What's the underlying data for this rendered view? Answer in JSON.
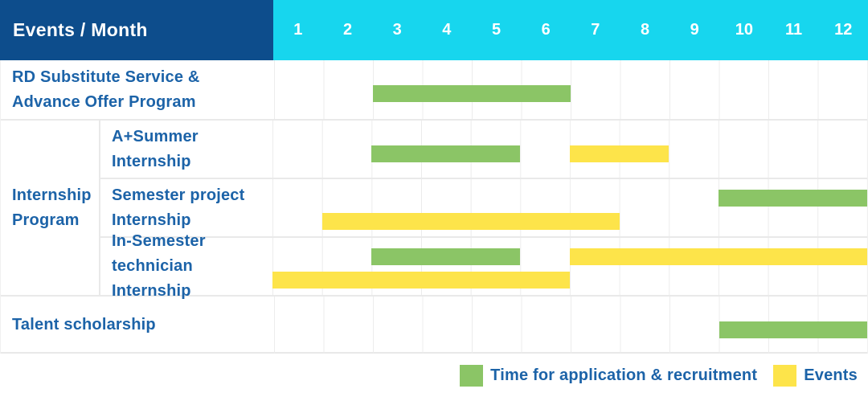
{
  "header": {
    "label": "Events / Month",
    "months": [
      "1",
      "2",
      "3",
      "4",
      "5",
      "6",
      "7",
      "8",
      "9",
      "10",
      "11",
      "12"
    ]
  },
  "row_groups": [
    {
      "label": "Internship Program",
      "lines": [
        "Internship",
        "Program"
      ]
    }
  ],
  "chart_data": {
    "type": "gantt",
    "x_axis": {
      "title": "Month",
      "ticks": [
        1,
        2,
        3,
        4,
        5,
        6,
        7,
        8,
        9,
        10,
        11,
        12
      ],
      "range": [
        1,
        12
      ]
    },
    "series": {
      "application": {
        "label": "Time for application & recruitment",
        "color": "#8bc566"
      },
      "events": {
        "label": "Events",
        "color": "#fde44a"
      }
    },
    "rows": [
      {
        "label": "RD Substitute Service & Advance Offer Program",
        "lines": [
          "RD Substitute Service &",
          "Advance Offer Program"
        ],
        "group": null,
        "bars": [
          {
            "series": "application",
            "start_month": 3,
            "end_month": 6,
            "track": "center"
          }
        ]
      },
      {
        "label": "A+Summer Internship",
        "lines": [
          "A+Summer",
          "Internship"
        ],
        "group": "Internship Program",
        "bars": [
          {
            "series": "application",
            "start_month": 3,
            "end_month": 5,
            "track": "center"
          },
          {
            "series": "events",
            "start_month": 7,
            "end_month": 8,
            "track": "center"
          }
        ]
      },
      {
        "label": "Semester project Internship",
        "lines": [
          "Semester project",
          "Internship"
        ],
        "group": "Internship Program",
        "bars": [
          {
            "series": "application",
            "start_month": 10,
            "end_month": 12,
            "track": "upper"
          },
          {
            "series": "events",
            "start_month": 2,
            "end_month": 7,
            "track": "lower"
          }
        ]
      },
      {
        "label": "In-Semester technician Internship",
        "lines": [
          "In-Semester",
          "technician Internship"
        ],
        "group": "Internship Program",
        "bars": [
          {
            "series": "application",
            "start_month": 3,
            "end_month": 5,
            "track": "upper"
          },
          {
            "series": "events",
            "start_month": 7,
            "end_month": 12,
            "track": "upper"
          },
          {
            "series": "events",
            "start_month": 1,
            "end_month": 6,
            "track": "lower"
          }
        ]
      },
      {
        "label": "Talent scholarship",
        "lines": [
          "Talent scholarship"
        ],
        "group": null,
        "bars": [
          {
            "series": "application",
            "start_month": 10,
            "end_month": 12,
            "track": "center"
          }
        ]
      }
    ]
  },
  "legend": {
    "items": [
      {
        "series": "application",
        "label": "Time for application & recruitment",
        "color": "#8bc566"
      },
      {
        "series": "events",
        "label": "Events",
        "color": "#fde44a"
      }
    ]
  },
  "colors": {
    "header_navy": "#0d4d8c",
    "header_cyan": "#17d6ee",
    "bar_green": "#8bc566",
    "bar_yellow": "#fde44a",
    "text_blue": "#1c63a8",
    "grid_line": "#e9e9e9"
  }
}
